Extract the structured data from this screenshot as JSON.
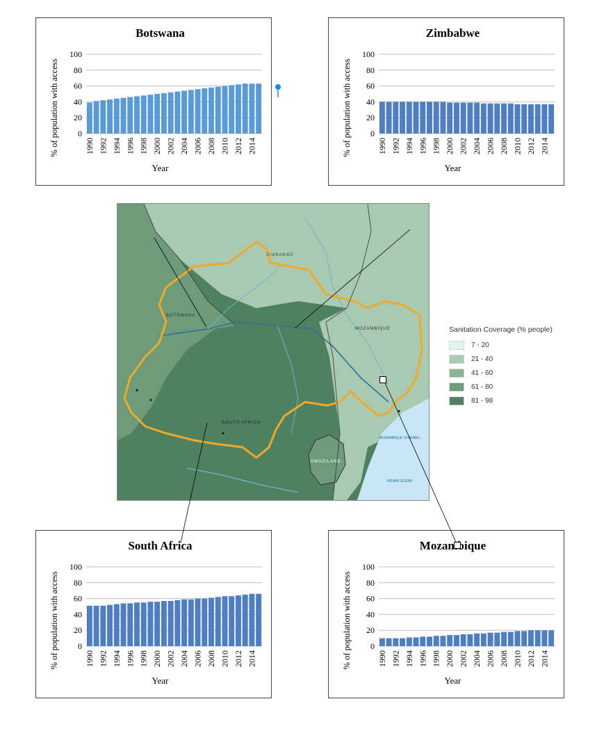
{
  "colors": {
    "bar": "#4f7fc0",
    "bar_light": "#5b9bd5",
    "grid": "#bfbfbf",
    "axis_text": "#000000",
    "map_dark": "#4f8160",
    "map_mid": "#6e9c7a",
    "map_light": "#a9c9b0",
    "basin": "#f0a928",
    "ocean": "#c9e6f7"
  },
  "chart_data": [
    {
      "id": "botswana",
      "type": "bar",
      "title": "Botswana",
      "xlabel": "Year",
      "ylabel": "% of population with access",
      "ylim": [
        0,
        100
      ],
      "yticks": [
        "0",
        "20",
        "40",
        "60",
        "80",
        "100"
      ],
      "categories": [
        "1990",
        "1991",
        "1992",
        "1993",
        "1994",
        "1995",
        "1996",
        "1997",
        "1998",
        "1999",
        "2000",
        "2001",
        "2002",
        "2003",
        "2004",
        "2005",
        "2006",
        "2007",
        "2008",
        "2009",
        "2010",
        "2011",
        "2012",
        "2013",
        "2014",
        "2015"
      ],
      "xticklabels": [
        "1990",
        "1992",
        "1994",
        "1996",
        "1998",
        "2000",
        "2002",
        "2004",
        "2006",
        "2008",
        "2010",
        "2012",
        "2014"
      ],
      "values": [
        39,
        41,
        42,
        43,
        44,
        45,
        46,
        47,
        48,
        49,
        50,
        51,
        52,
        53,
        54,
        55,
        56,
        57,
        58,
        59,
        60,
        61,
        62,
        63,
        63,
        63
      ],
      "grid": true,
      "color": "#5b9bd5"
    },
    {
      "id": "zimbabwe",
      "type": "bar",
      "title": "Zimbabwe",
      "xlabel": "Year",
      "ylabel": "% of population with access",
      "ylim": [
        0,
        100
      ],
      "yticks": [
        "0",
        "20",
        "40",
        "60",
        "80",
        "100"
      ],
      "categories": [
        "1990",
        "1991",
        "1992",
        "1993",
        "1994",
        "1995",
        "1996",
        "1997",
        "1998",
        "1999",
        "2000",
        "2001",
        "2002",
        "2003",
        "2004",
        "2005",
        "2006",
        "2007",
        "2008",
        "2009",
        "2010",
        "2011",
        "2012",
        "2013",
        "2014",
        "2015"
      ],
      "xticklabels": [
        "1990",
        "1992",
        "1994",
        "1996",
        "1998",
        "2000",
        "2002",
        "2004",
        "2006",
        "2008",
        "2010",
        "2012",
        "2014"
      ],
      "values": [
        40,
        40,
        40,
        40,
        40,
        40,
        40,
        40,
        40,
        40,
        39,
        39,
        39,
        39,
        39,
        38,
        38,
        38,
        38,
        38,
        37,
        37,
        37,
        37,
        37,
        37
      ],
      "grid": true,
      "color": "#4f7fc0"
    },
    {
      "id": "south-africa",
      "type": "bar",
      "title": "South Africa",
      "xlabel": "Year",
      "ylabel": "% of population with access",
      "ylim": [
        0,
        100
      ],
      "yticks": [
        "0",
        "20",
        "40",
        "60",
        "80",
        "100"
      ],
      "categories": [
        "1990",
        "1991",
        "1992",
        "1993",
        "1994",
        "1995",
        "1996",
        "1997",
        "1998",
        "1999",
        "2000",
        "2001",
        "2002",
        "2003",
        "2004",
        "2005",
        "2006",
        "2007",
        "2008",
        "2009",
        "2010",
        "2011",
        "2012",
        "2013",
        "2014",
        "2015"
      ],
      "xticklabels": [
        "1990",
        "1992",
        "1994",
        "1996",
        "1998",
        "2000",
        "2002",
        "2004",
        "2006",
        "2008",
        "2010",
        "2012",
        "2014"
      ],
      "values": [
        51,
        51,
        51,
        52,
        53,
        54,
        54,
        55,
        55,
        56,
        56,
        57,
        57,
        58,
        59,
        59,
        60,
        60,
        61,
        62,
        63,
        63,
        64,
        65,
        66,
        66
      ],
      "grid": true,
      "color": "#4f7fc0"
    },
    {
      "id": "mozambique",
      "type": "bar",
      "title": "Mozambique",
      "xlabel": "Year",
      "ylabel": "% of population with access",
      "ylim": [
        0,
        100
      ],
      "yticks": [
        "0",
        "20",
        "40",
        "60",
        "80",
        "100"
      ],
      "categories": [
        "1990",
        "1991",
        "1992",
        "1993",
        "1994",
        "1995",
        "1996",
        "1997",
        "1998",
        "1999",
        "2000",
        "2001",
        "2002",
        "2003",
        "2004",
        "2005",
        "2006",
        "2007",
        "2008",
        "2009",
        "2010",
        "2011",
        "2012",
        "2013",
        "2014",
        "2015"
      ],
      "xticklabels": [
        "1990",
        "1992",
        "1994",
        "1996",
        "1998",
        "2000",
        "2002",
        "2004",
        "2006",
        "2008",
        "2010",
        "2012",
        "2014"
      ],
      "values": [
        10,
        10,
        10,
        10,
        11,
        11,
        12,
        12,
        13,
        13,
        14,
        14,
        15,
        15,
        16,
        16,
        17,
        17,
        18,
        18,
        19,
        19,
        20,
        20,
        20,
        20
      ],
      "grid": true,
      "color": "#4f7fc0"
    }
  ],
  "map": {
    "labels": {
      "zimbabwe": "ZIMBABWE",
      "botswana": "BOTSWANA",
      "mozambique": "MOZAMBIQUE",
      "south_africa": "SOUTH AFRICA",
      "swaziland": "SWAZILAND",
      "mozambique_channel": "MOZAMBIQUE CHANNEL",
      "indian_ocean": "INDIAN OCEAN"
    }
  },
  "legend": {
    "title": "Sanitation Coverage (% people)",
    "items": [
      {
        "label": "7 - 20",
        "color": "#e4f4ea"
      },
      {
        "label": "21 - 40",
        "color": "#a9c9b0"
      },
      {
        "label": "41 - 60",
        "color": "#8cb394"
      },
      {
        "label": "61 - 80",
        "color": "#6e9c7a"
      },
      {
        "label": "81 - 98",
        "color": "#4f8160"
      }
    ]
  }
}
